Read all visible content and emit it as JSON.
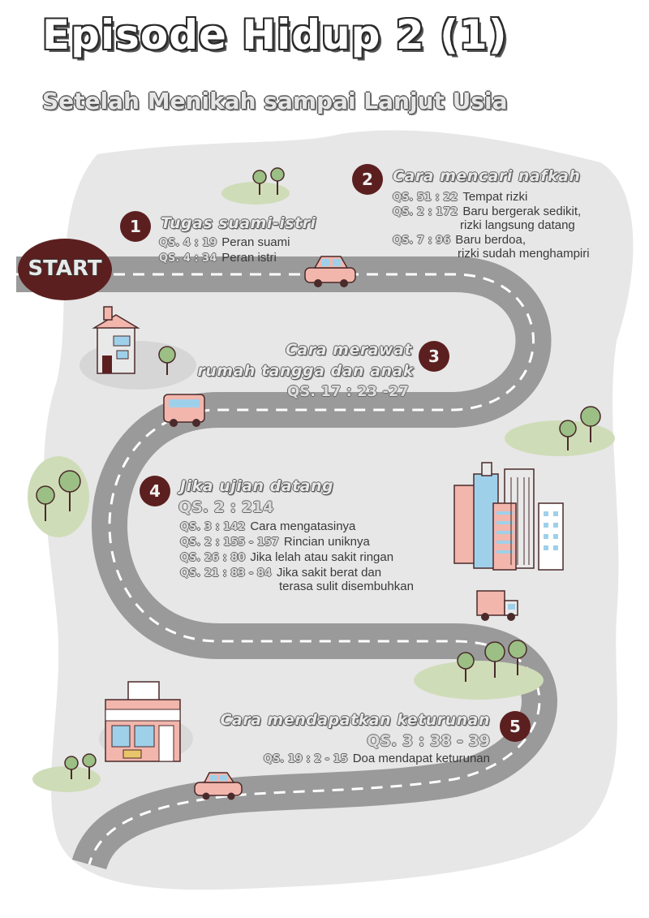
{
  "title": "Episode Hidup 2 (1)",
  "subtitle": "Setelah Menikah sampai Lanjut Usia",
  "start_label": "START",
  "sections": [
    {
      "number": "1",
      "heading": "Tugas suami-istri",
      "refs": [
        {
          "ref": "QS. 4 : 19",
          "text": "Peran suami"
        },
        {
          "ref": "QS. 4 : 34",
          "text": "Peran istri"
        }
      ]
    },
    {
      "number": "2",
      "heading": "Cara mencari nafkah",
      "refs": [
        {
          "ref": "QS. 51 : 22",
          "text": "Tempat rizki",
          "text2": ""
        },
        {
          "ref": "QS. 2 : 172",
          "text": "Baru bergerak sedikit,",
          "text2": "rizki langsung datang"
        },
        {
          "ref": "QS. 7 : 96",
          "text": "Baru berdoa,",
          "text2": "rizki sudah menghampiri"
        }
      ]
    },
    {
      "number": "3",
      "heading_line1": "Cara merawat",
      "heading_line2": "rumah tangga dan anak",
      "ref": "QS. 17 : 23 -27"
    },
    {
      "number": "4",
      "heading": "Jika ujian datang",
      "main_ref": "QS. 2 : 214",
      "refs": [
        {
          "ref": "QS. 3 : 142",
          "text": "Cara mengatasinya",
          "text2": ""
        },
        {
          "ref": "QS. 2 : 155 - 157",
          "text": "Rincian uniknya",
          "text2": ""
        },
        {
          "ref": "QS. 26 : 80",
          "text": "Jika lelah atau sakit ringan",
          "text2": ""
        },
        {
          "ref": "QS. 21 : 83 - 84",
          "text": "Jika sakit berat dan",
          "text2": "terasa sulit disembuhkan"
        }
      ]
    },
    {
      "number": "5",
      "heading": "Cara mendapatkan keturunan",
      "main_ref": "QS. 3 : 38 - 39",
      "refs": [
        {
          "ref": "QS. 19 : 2 - 15",
          "text": "Doa mendapat keturunan"
        }
      ]
    }
  ],
  "colors": {
    "background_blob": "#e7e7e7",
    "road": "#9a9a9a",
    "road_dash": "#ffffff",
    "circle": "#5c1f1f",
    "vehicle": "#f2b6ad",
    "grass": "#cfdcb8",
    "tree": "#9bbf84"
  },
  "icons": [
    "car-icon",
    "bus-icon",
    "truck-icon",
    "house-icon",
    "store-icon",
    "tree-icon",
    "building-icon"
  ]
}
